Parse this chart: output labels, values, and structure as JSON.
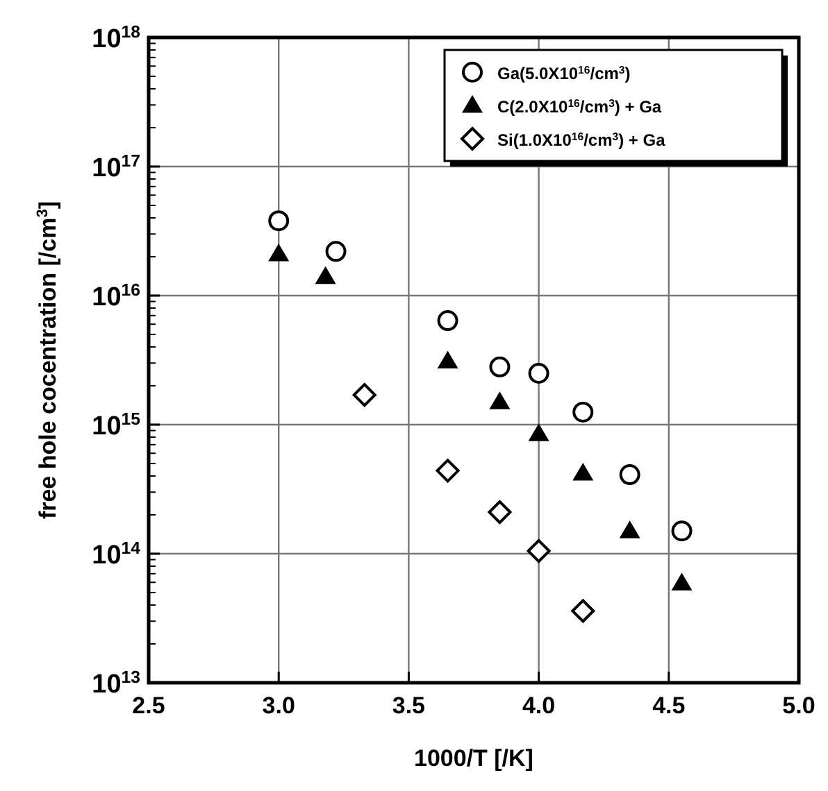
{
  "chart_data": {
    "type": "scatter",
    "xlabel": "1000/T [/K]",
    "ylabel": "free hole cocentration [/cm$^{3}$]",
    "xlim": [
      2.5,
      5.0
    ],
    "xticks": [
      {
        "value": 2.5,
        "label": "2.5"
      },
      {
        "value": 3.0,
        "label": "3.0"
      },
      {
        "value": 3.5,
        "label": "3.5"
      },
      {
        "value": 4.0,
        "label": "4.0"
      },
      {
        "value": 4.5,
        "label": "4.5"
      },
      {
        "value": 5.0,
        "label": "5.0"
      }
    ],
    "ylim": [
      10000000000000.0,
      1e+18
    ],
    "yticks": [
      {
        "value": 10000000000000.0,
        "label": "10$^{13}$"
      },
      {
        "value": 100000000000000.0,
        "label": "10$^{14}$"
      },
      {
        "value": 1000000000000000.0,
        "label": "10$^{15}$"
      },
      {
        "value": 1e+16,
        "label": "10$^{16}$"
      },
      {
        "value": 1e+17,
        "label": "10$^{17}$"
      },
      {
        "value": 1e+18,
        "label": "10$^{18}$"
      }
    ],
    "log": "y",
    "grid": true,
    "legend": "top right",
    "series": [
      {
        "name": "Ga(5.0X10$^{16}$/cm$^{3}$)",
        "color": "#000000",
        "marker": "circle",
        "x": [
          3.0,
          3.22,
          3.65,
          3.85,
          4.0,
          4.17,
          4.35,
          4.55
        ],
        "values": [
          3.8e+16,
          2.2e+16,
          6400000000000000.0,
          2800000000000000.0,
          2500000000000000.0,
          1250000000000000.0,
          410000000000000.0,
          150000000000000.0
        ]
      },
      {
        "name": "C(2.0X10$^{16}$/cm$^{3}$) + Ga",
        "color": "#000000",
        "marker": "triangle",
        "x": [
          3.0,
          3.18,
          3.65,
          3.85,
          4.0,
          4.17,
          4.35,
          4.55
        ],
        "values": [
          2.1e+16,
          1.4e+16,
          3100000000000000.0,
          1500000000000000.0,
          850000000000000.0,
          420000000000000.0,
          150000000000000.0,
          59000000000000.0
        ]
      },
      {
        "name": "Si(1.0X10$^{16}$/cm$^{3}$) + Ga",
        "color": "#000000",
        "marker": "diamond",
        "x": [
          3.33,
          3.65,
          3.85,
          4.0,
          4.17
        ],
        "values": [
          1700000000000000.0,
          440000000000000.0,
          210000000000000.0,
          105000000000000.0,
          36000000000000.0
        ]
      }
    ]
  }
}
